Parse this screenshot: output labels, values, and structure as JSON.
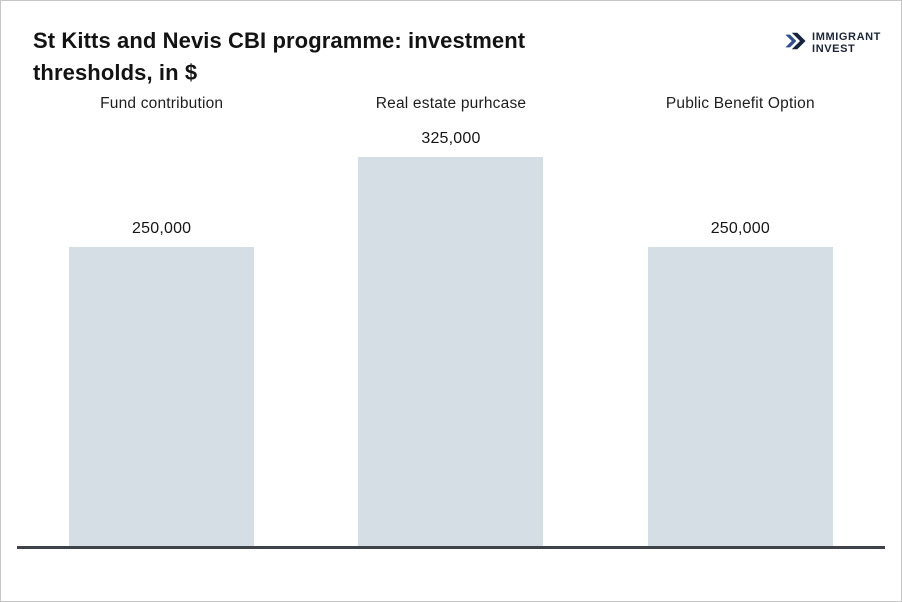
{
  "header": {
    "title_line1": "St Kitts and Nevis CBI programme: investment",
    "title_line2": "thresholds, in $",
    "logo": {
      "line1": "IMMIGRANT",
      "line2": "INVEST"
    }
  },
  "chart_data": {
    "type": "bar",
    "title": "St Kitts and Nevis CBI programme: investment thresholds, in $",
    "categories": [
      "Fund contribution",
      "Real estate purhcase",
      "Public Benefit Option"
    ],
    "values": [
      250000,
      325000,
      250000
    ],
    "value_labels": [
      "250,000",
      "325,000",
      "250,000"
    ],
    "xlabel": "",
    "ylabel": "",
    "ylim": [
      0,
      325000
    ],
    "grid": false,
    "legend": false,
    "bar_color": "#d5dee5",
    "axis_color": "#3d4348"
  },
  "colors": {
    "bar": "#d5dee5",
    "axis": "#3d4348",
    "title_text": "#131313",
    "logo_navy": "#1b2538",
    "logo_chevron_light": "#2e4c97",
    "logo_chevron_dark": "#16233f",
    "border": "#c6c6c6"
  }
}
